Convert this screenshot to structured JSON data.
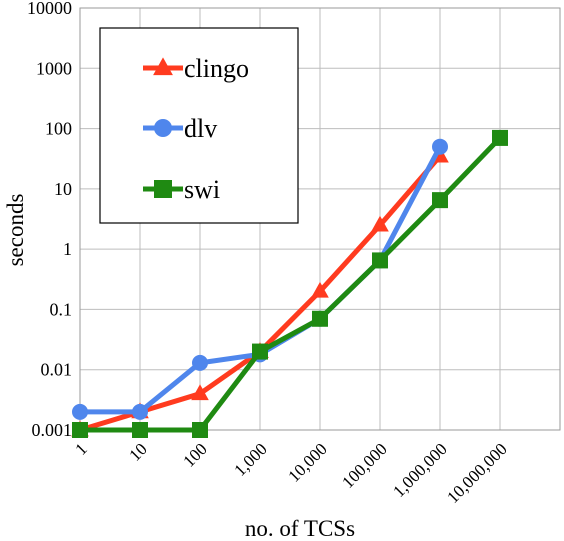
{
  "chart_data": {
    "type": "line",
    "xlabel": "no. of TCSs",
    "ylabel": "seconds",
    "x_scale": "log",
    "y_scale": "log",
    "ylim": [
      0.001,
      10000
    ],
    "grid": true,
    "legend_position": "top-left",
    "categories": [
      "1",
      "10",
      "100",
      "1,000",
      "10,000",
      "100,000",
      "1,000,000",
      "10,000,000"
    ],
    "y_tick_labels": [
      "0.001",
      "0.01",
      "0.1",
      "1",
      "10",
      "100",
      "1000",
      "10000"
    ],
    "series": [
      {
        "name": "clingo",
        "marker": "triangle",
        "color": "#ff3b1f",
        "x": [
          1,
          10,
          100,
          1000,
          10000,
          100000,
          1000000
        ],
        "y": [
          0.001,
          0.002,
          0.004,
          0.02,
          0.2,
          2.5,
          35
        ]
      },
      {
        "name": "dlv",
        "marker": "circle",
        "color": "#4f86ec",
        "x": [
          1,
          10,
          100,
          1000,
          10000,
          100000,
          1000000
        ],
        "y": [
          0.002,
          0.002,
          0.013,
          0.018,
          0.07,
          0.65,
          50
        ]
      },
      {
        "name": "swi",
        "marker": "square",
        "color": "#1f8a12",
        "x": [
          1,
          10,
          100,
          1000,
          10000,
          100000,
          1000000,
          10000000
        ],
        "y": [
          0.001,
          0.001,
          0.001,
          0.02,
          0.07,
          0.65,
          6.5,
          70
        ]
      }
    ]
  }
}
